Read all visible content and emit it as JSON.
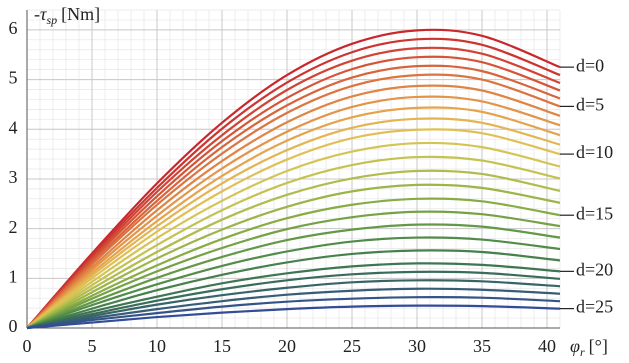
{
  "chart_data": {
    "type": "line",
    "ylabel": {
      "symbol": "-τ",
      "subscript": "sp",
      "unit": "[Nm]"
    },
    "xlabel": {
      "symbol": "φ",
      "subscript": "r",
      "unit": "[°]"
    },
    "x": [
      0,
      5,
      10,
      15,
      20,
      25,
      30,
      35,
      41
    ],
    "xlim": [
      0,
      41
    ],
    "xticks": [
      0,
      5,
      10,
      15,
      20,
      25,
      30,
      35,
      40
    ],
    "ylim": [
      0,
      6.4
    ],
    "yticks": [
      0,
      1,
      2,
      3,
      4,
      5,
      6
    ],
    "grid": true,
    "series": [
      {
        "name": "d=0",
        "color": "#c8282d",
        "values": [
          0,
          1.5,
          2.91,
          4.13,
          5.09,
          5.72,
          5.99,
          5.88,
          5.25
        ]
      },
      {
        "color": "#cc3430",
        "values": [
          0,
          1.46,
          2.82,
          4.01,
          4.94,
          5.55,
          5.81,
          5.7,
          5.09
        ]
      },
      {
        "color": "#d04434",
        "values": [
          0,
          1.41,
          2.74,
          3.88,
          4.79,
          5.38,
          5.63,
          5.52,
          4.93
        ]
      },
      {
        "color": "#d45438",
        "values": [
          0,
          1.37,
          2.65,
          3.76,
          4.63,
          5.21,
          5.45,
          5.35,
          4.78
        ]
      },
      {
        "color": "#d8643c",
        "values": [
          0,
          1.32,
          2.56,
          3.64,
          4.48,
          5.04,
          5.27,
          5.17,
          4.62
        ]
      },
      {
        "name": "d=5",
        "color": "#dc7440",
        "values": [
          0,
          1.28,
          2.48,
          3.51,
          4.33,
          4.87,
          5.09,
          5.0,
          4.46
        ]
      },
      {
        "color": "#e08444",
        "values": [
          0,
          1.22,
          2.37,
          3.36,
          4.14,
          4.66,
          4.87,
          4.78,
          4.27
        ]
      },
      {
        "color": "#e39448",
        "values": [
          0,
          1.17,
          2.26,
          3.21,
          3.95,
          4.45,
          4.65,
          4.56,
          4.08
        ]
      },
      {
        "color": "#e5a44c",
        "values": [
          0,
          1.11,
          2.15,
          3.06,
          3.77,
          4.24,
          4.43,
          4.35,
          3.88
        ]
      },
      {
        "color": "#e4b450",
        "values": [
          0,
          1.06,
          2.05,
          2.91,
          3.58,
          4.03,
          4.21,
          4.13,
          3.69
        ]
      },
      {
        "name": "d=10",
        "color": "#e0c054",
        "values": [
          0,
          1.0,
          1.94,
          2.75,
          3.39,
          3.82,
          3.99,
          3.92,
          3.5
        ]
      },
      {
        "color": "#d4c454",
        "values": [
          0,
          0.93,
          1.81,
          2.56,
          3.16,
          3.55,
          3.72,
          3.64,
          3.25
        ]
      },
      {
        "color": "#c4c250",
        "values": [
          0,
          0.86,
          1.67,
          2.37,
          2.92,
          3.28,
          3.44,
          3.37,
          3.01
        ]
      },
      {
        "color": "#b0bc4c",
        "values": [
          0,
          0.79,
          1.53,
          2.18,
          2.68,
          3.01,
          3.16,
          3.1,
          2.76
        ]
      },
      {
        "color": "#9cb448",
        "values": [
          0,
          0.72,
          1.4,
          1.98,
          2.44,
          2.75,
          2.88,
          2.82,
          2.52
        ]
      },
      {
        "name": "d=15",
        "color": "#88ac44",
        "values": [
          0,
          0.65,
          1.26,
          1.79,
          2.21,
          2.48,
          2.6,
          2.55,
          2.27
        ]
      },
      {
        "color": "#74a244",
        "values": [
          0,
          0.59,
          1.14,
          1.61,
          1.99,
          2.23,
          2.34,
          2.29,
          2.05
        ]
      },
      {
        "color": "#629846",
        "values": [
          0,
          0.52,
          1.01,
          1.43,
          1.77,
          1.98,
          2.08,
          2.04,
          1.82
        ]
      },
      {
        "color": "#528c48",
        "values": [
          0,
          0.46,
          0.88,
          1.25,
          1.54,
          1.74,
          1.82,
          1.78,
          1.59
        ]
      },
      {
        "color": "#46804c",
        "values": [
          0,
          0.39,
          0.76,
          1.07,
          1.32,
          1.49,
          1.56,
          1.53,
          1.36
        ]
      },
      {
        "name": "d=20",
        "color": "#3e7652",
        "values": [
          0,
          0.33,
          0.63,
          0.9,
          1.1,
          1.24,
          1.3,
          1.27,
          1.14
        ]
      },
      {
        "color": "#3a6c5c",
        "values": [
          0,
          0.28,
          0.55,
          0.78,
          0.96,
          1.08,
          1.13,
          1.11,
          0.99
        ]
      },
      {
        "color": "#386468",
        "values": [
          0,
          0.24,
          0.47,
          0.66,
          0.81,
          0.92,
          0.96,
          0.94,
          0.84
        ]
      },
      {
        "color": "#365c78",
        "values": [
          0,
          0.2,
          0.38,
          0.54,
          0.67,
          0.75,
          0.79,
          0.77,
          0.69
        ]
      },
      {
        "color": "#345488",
        "values": [
          0,
          0.16,
          0.3,
          0.43,
          0.53,
          0.59,
          0.62,
          0.61,
          0.54
        ]
      },
      {
        "name": "d=25",
        "color": "#324c98",
        "values": [
          0,
          0.11,
          0.22,
          0.31,
          0.38,
          0.43,
          0.45,
          0.44,
          0.39
        ]
      }
    ]
  }
}
